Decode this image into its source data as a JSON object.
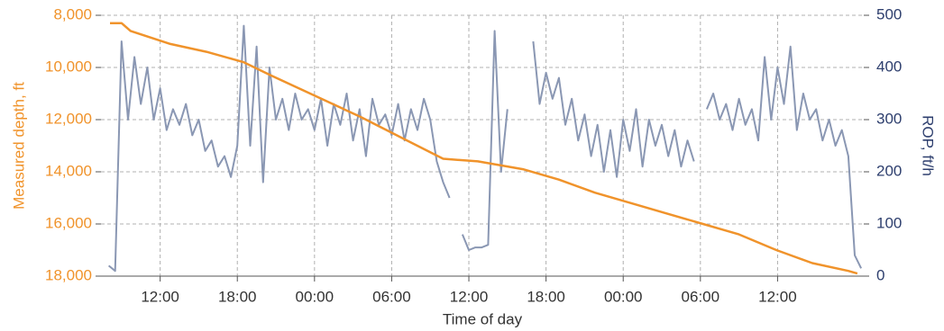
{
  "chart_data": {
    "type": "line",
    "xlabel": "Time of day",
    "ylabel": "Measured depth, ft",
    "y2label": "ROP, ft/h",
    "xlim": [
      7.4,
      66.7
    ],
    "xticks": [
      {
        "value": 12,
        "label": "12:00"
      },
      {
        "value": 18,
        "label": "18:00"
      },
      {
        "value": 24,
        "label": "00:00"
      },
      {
        "value": 30,
        "label": "06:00"
      },
      {
        "value": 36,
        "label": "12:00"
      },
      {
        "value": 42,
        "label": "18:00"
      },
      {
        "value": 48,
        "label": "00:00"
      },
      {
        "value": 54,
        "label": "06:00"
      },
      {
        "value": 60,
        "label": "12:00"
      }
    ],
    "ylim": [
      18000,
      8000
    ],
    "yticks": [
      {
        "value": 8000,
        "label": "8,000"
      },
      {
        "value": 10000,
        "label": "10,000"
      },
      {
        "value": 12000,
        "label": "12,000"
      },
      {
        "value": 14000,
        "label": "14,000"
      },
      {
        "value": 16000,
        "label": "16,000"
      },
      {
        "value": 18000,
        "label": "18,000"
      }
    ],
    "y2lim": [
      0,
      500
    ],
    "y2ticks": [
      0,
      100,
      200,
      300,
      400,
      500
    ],
    "grid": true,
    "ycolor": "#f0932b",
    "y2color": "#2e3f6e",
    "series": [
      {
        "color": "#f0932b",
        "axis": "y",
        "x": [
          8.1,
          9,
          9.7,
          12.8,
          15.6,
          18.5,
          20.6,
          24.1,
          27.6,
          31.2,
          34,
          36.7,
          40.2,
          43,
          45.8,
          48.6,
          51.4,
          54.2,
          57,
          59.9,
          62.7,
          65.5,
          66.2
        ],
        "values": [
          8300,
          8300,
          8600,
          9100,
          9400,
          9800,
          10300,
          11100,
          11900,
          12800,
          13500,
          13600,
          13900,
          14300,
          14800,
          15200,
          15600,
          16000,
          16400,
          17000,
          17500,
          17800,
          17900
        ]
      },
      {
        "color": "#8a97b3",
        "axis": "y2",
        "x": [
          8,
          8.5,
          9,
          9.5,
          10,
          10.5,
          11,
          11.5,
          12,
          12.5,
          13,
          13.5,
          14,
          14.5,
          15,
          15.5,
          16,
          16.5,
          17,
          17.5,
          18,
          18.5,
          19,
          19.5,
          20,
          20.5,
          21,
          21.5,
          22,
          22.5,
          23,
          23.5,
          24,
          24.5,
          25,
          25.5,
          26,
          26.5,
          27,
          27.5,
          28,
          28.5,
          29,
          29.5,
          30,
          30.5,
          31,
          31.5,
          32,
          32.5,
          33,
          33.5,
          34,
          34.5,
          35,
          35.5,
          36,
          36.5,
          37,
          37.5,
          38,
          38.5,
          39,
          39.5,
          40,
          40.5,
          41,
          41.5,
          42,
          42.5,
          43,
          43.5,
          44,
          44.5,
          45,
          45.5,
          46,
          46.5,
          47,
          47.5,
          48,
          48.5,
          49,
          49.5,
          50,
          50.5,
          51,
          51.5,
          52,
          52.5,
          53,
          53.5,
          54,
          54.5,
          55,
          55.5,
          56,
          56.5,
          57,
          57.5,
          58,
          58.5,
          59,
          59.5,
          60,
          60.5,
          61,
          61.5,
          62,
          62.5,
          63,
          63.5,
          64,
          64.5,
          65,
          65.5,
          66,
          66.5
        ],
        "values": [
          20,
          10,
          450,
          300,
          420,
          330,
          400,
          300,
          360,
          280,
          320,
          290,
          330,
          270,
          300,
          240,
          260,
          210,
          230,
          190,
          250,
          480,
          250,
          440,
          180,
          400,
          300,
          340,
          280,
          350,
          300,
          320,
          280,
          340,
          250,
          330,
          290,
          350,
          260,
          320,
          230,
          340,
          290,
          310,
          270,
          330,
          260,
          320,
          280,
          340,
          300,
          220,
          180,
          150,
          null,
          80,
          50,
          55,
          55,
          60,
          470,
          200,
          320,
          null,
          null,
          null,
          450,
          330,
          390,
          340,
          380,
          290,
          340,
          260,
          310,
          230,
          290,
          200,
          280,
          190,
          300,
          240,
          320,
          210,
          300,
          250,
          290,
          230,
          280,
          210,
          260,
          220,
          null,
          320,
          350,
          300,
          330,
          280,
          340,
          290,
          320,
          260,
          420,
          300,
          400,
          330,
          440,
          280,
          350,
          300,
          320,
          260,
          300,
          250,
          280,
          230,
          40,
          15
        ]
      }
    ]
  }
}
